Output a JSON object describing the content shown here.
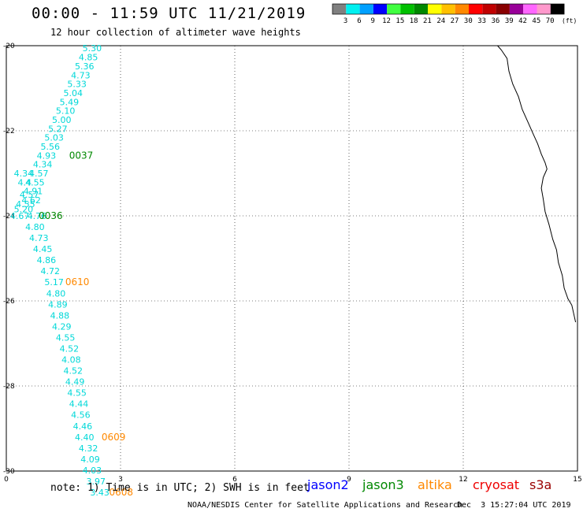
{
  "title": "00:00 - 11:59 UTC 11/21/2019",
  "subtitle": "12 hour collection of altimeter wave heights",
  "note": "note: 1) Time is in UTC; 2) SWH is in feet",
  "credit": "NOAA/NESDIS Center for Satellite Applications and Research",
  "timestamp": "Dec  3 15:27:04 UTC 2019",
  "legend": {
    "unit": "(ft)",
    "colors": [
      "#808080",
      "#00f0f0",
      "#00a0ff",
      "#0000ff",
      "#40ff40",
      "#00c000",
      "#008800",
      "#ffff00",
      "#ffc000",
      "#ff8800",
      "#ff0000",
      "#c00000",
      "#880000",
      "#990099",
      "#ff66ff",
      "#ff99cc",
      "#000000"
    ],
    "labels": [
      "",
      "3",
      "6",
      "9",
      "12",
      "15",
      "18",
      "21",
      "24",
      "27",
      "30",
      "33",
      "36",
      "39",
      "42",
      "45",
      "70"
    ]
  },
  "map": {
    "x_range": [
      0,
      15
    ],
    "y_range": [
      -30,
      -20
    ],
    "x_ticks": [
      0,
      3,
      6,
      9,
      12,
      15
    ],
    "y_ticks": [
      -30,
      -28,
      -26,
      -24,
      -22,
      -20
    ],
    "x_tick_labels": [
      "0",
      "3",
      "6",
      "9",
      "12",
      "15"
    ],
    "y_tick_labels": [
      "-30",
      "-28",
      "-26",
      "-24",
      "-22",
      "-20"
    ]
  },
  "satellites": [
    {
      "name": "jason2",
      "color": "#0000ff"
    },
    {
      "name": "jason3",
      "color": "#008800"
    },
    {
      "name": "altika",
      "color": "#ff8800"
    },
    {
      "name": "cryosat",
      "color": "#ee0000"
    },
    {
      "name": "s3a",
      "color": "#990000"
    }
  ],
  "coastline": [
    [
      12.9,
      -20.0
    ],
    [
      13.0,
      -20.1
    ],
    [
      13.15,
      -20.3
    ],
    [
      13.2,
      -20.6
    ],
    [
      13.3,
      -20.9
    ],
    [
      13.45,
      -21.2
    ],
    [
      13.55,
      -21.5
    ],
    [
      13.7,
      -21.8
    ],
    [
      13.85,
      -22.1
    ],
    [
      13.95,
      -22.3
    ],
    [
      14.05,
      -22.55
    ],
    [
      14.15,
      -22.75
    ],
    [
      14.2,
      -22.9
    ],
    [
      14.15,
      -23.0
    ],
    [
      14.1,
      -23.1
    ],
    [
      14.05,
      -23.35
    ],
    [
      14.1,
      -23.6
    ],
    [
      14.15,
      -23.9
    ],
    [
      14.25,
      -24.2
    ],
    [
      14.35,
      -24.55
    ],
    [
      14.45,
      -24.8
    ],
    [
      14.5,
      -25.1
    ],
    [
      14.6,
      -25.4
    ],
    [
      14.65,
      -25.7
    ],
    [
      14.75,
      -25.95
    ],
    [
      14.85,
      -26.1
    ],
    [
      14.9,
      -26.3
    ],
    [
      14.95,
      -26.5
    ]
  ],
  "track_heights": [
    {
      "label": "5.30",
      "x": 2.0,
      "y": -20.06
    },
    {
      "label": "4.85",
      "x": 1.9,
      "y": -20.27
    },
    {
      "label": "5.36",
      "x": 1.8,
      "y": -20.48
    },
    {
      "label": "4.73",
      "x": 1.7,
      "y": -20.69
    },
    {
      "label": "5.33",
      "x": 1.6,
      "y": -20.9
    },
    {
      "label": "5.04",
      "x": 1.5,
      "y": -21.11
    },
    {
      "label": "5.49",
      "x": 1.4,
      "y": -21.32
    },
    {
      "label": "5.10",
      "x": 1.3,
      "y": -21.53
    },
    {
      "label": "5.00",
      "x": 1.2,
      "y": -21.74
    },
    {
      "label": "5.27",
      "x": 1.1,
      "y": -21.95
    },
    {
      "label": "5.03",
      "x": 1.0,
      "y": -22.16
    },
    {
      "label": "5.56",
      "x": 0.9,
      "y": -22.37
    },
    {
      "label": "4.93",
      "x": 0.8,
      "y": -22.58
    },
    {
      "label": "4.34",
      "x": 0.7,
      "y": -22.79
    },
    {
      "label": "4.57",
      "x": 0.6,
      "y": -23.0
    },
    {
      "label": "4.34",
      "x": 0.2,
      "y": -23.0
    },
    {
      "label": "4.55",
      "x": 0.5,
      "y": -23.21
    },
    {
      "label": "4.4",
      "x": 0.3,
      "y": -23.21
    },
    {
      "label": "4.91",
      "x": 0.45,
      "y": -23.42
    },
    {
      "label": "4.57",
      "x": 0.35,
      "y": -23.5
    },
    {
      "label": "4.62",
      "x": 0.4,
      "y": -23.63
    },
    {
      "label": "4.55",
      "x": 0.25,
      "y": -23.72
    },
    {
      "label": "5.20",
      "x": 0.2,
      "y": -23.84
    },
    {
      "label": "4.67",
      "x": 0.1,
      "y": -24.0
    },
    {
      "label": "4.76",
      "x": 0.55,
      "y": -24.0
    },
    {
      "label": "4.80",
      "x": 0.5,
      "y": -24.26
    },
    {
      "label": "4.73",
      "x": 0.6,
      "y": -24.52
    },
    {
      "label": "4.45",
      "x": 0.7,
      "y": -24.78
    },
    {
      "label": "4.86",
      "x": 0.8,
      "y": -25.04
    },
    {
      "label": "4.72",
      "x": 0.9,
      "y": -25.3
    },
    {
      "label": "5.17",
      "x": 1.0,
      "y": -25.56
    },
    {
      "label": "4.80",
      "x": 1.05,
      "y": -25.82
    },
    {
      "label": "4.89",
      "x": 1.1,
      "y": -26.08
    },
    {
      "label": "4.88",
      "x": 1.15,
      "y": -26.34
    },
    {
      "label": "4.29",
      "x": 1.2,
      "y": -26.6
    },
    {
      "label": "4.55",
      "x": 1.3,
      "y": -26.86
    },
    {
      "label": "4.52",
      "x": 1.4,
      "y": -27.12
    },
    {
      "label": "4.08",
      "x": 1.45,
      "y": -27.38
    },
    {
      "label": "4.52",
      "x": 1.5,
      "y": -27.64
    },
    {
      "label": "4.49",
      "x": 1.55,
      "y": -27.9
    },
    {
      "label": "4.55",
      "x": 1.6,
      "y": -28.16
    },
    {
      "label": "4.44",
      "x": 1.65,
      "y": -28.42
    },
    {
      "label": "4.56",
      "x": 1.7,
      "y": -28.68
    },
    {
      "label": "4.46",
      "x": 1.75,
      "y": -28.94
    },
    {
      "label": "4.40",
      "x": 1.8,
      "y": -29.2
    },
    {
      "label": "4.32",
      "x": 1.9,
      "y": -29.46
    },
    {
      "label": "4.09",
      "x": 1.95,
      "y": -29.72
    },
    {
      "label": "4.03",
      "x": 2.0,
      "y": -29.98
    },
    {
      "label": "3.97",
      "x": 2.1,
      "y": -30.24
    },
    {
      "label": "3.43",
      "x": 2.2,
      "y": -30.5
    }
  ],
  "pass_times": [
    {
      "label": "0037",
      "x": 1.65,
      "y": -22.58,
      "color": "#008800"
    },
    {
      "label": "0036",
      "x": 0.85,
      "y": -24.0,
      "color": "#008800"
    },
    {
      "label": "0610",
      "x": 1.55,
      "y": -25.56,
      "color": "#ff8800"
    },
    {
      "label": "0609",
      "x": 2.5,
      "y": -29.2,
      "color": "#ff8800"
    },
    {
      "label": "0608",
      "x": 2.7,
      "y": -30.5,
      "color": "#ff8800"
    }
  ]
}
